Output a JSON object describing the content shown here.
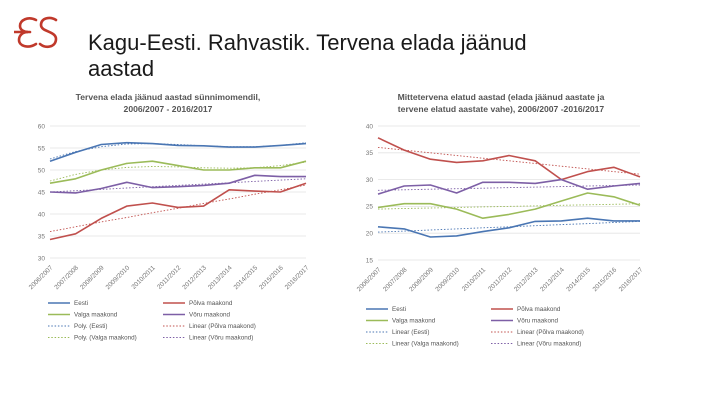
{
  "slide": {
    "title_line1": "Kagu-Eesti. Rahvastik. Tervena elada jäänud",
    "title_line2": "aastad"
  },
  "logo": {
    "icon": "es-logo-icon",
    "color": "#c0392b"
  },
  "chart_data": [
    {
      "type": "line",
      "title_lines": [
        "Tervena elada jäänud aastad sünnimomendil,",
        "2006/2007 - 2016/2017"
      ],
      "categories": [
        "2006/2007",
        "2007/2008",
        "2008/2009",
        "2009/2010",
        "2010/2011",
        "2011/2012",
        "2012/2013",
        "2013/2014",
        "2014/2015",
        "2015/2016",
        "2016/2017"
      ],
      "ylim": [
        30,
        60
      ],
      "yticks": [
        30,
        35,
        40,
        45,
        50,
        55,
        60
      ],
      "grid": true,
      "series": [
        {
          "name": "Eesti",
          "color": "#4a76b3",
          "style": "solid",
          "values": [
            52.0,
            54.0,
            55.8,
            56.2,
            56.0,
            55.6,
            55.5,
            55.2,
            55.2,
            55.6,
            56.0
          ]
        },
        {
          "name": "Põlva maakond",
          "color": "#c0504d",
          "style": "solid",
          "values": [
            34.2,
            35.5,
            39.0,
            41.8,
            42.5,
            41.5,
            41.8,
            45.5,
            45.2,
            45.0,
            47.0
          ]
        },
        {
          "name": "Valga maakond",
          "color": "#9bbb59",
          "style": "solid",
          "values": [
            47.0,
            48.0,
            50.0,
            51.5,
            52.0,
            51.0,
            50.0,
            50.0,
            50.5,
            50.5,
            52.0
          ]
        },
        {
          "name": "Võru maakond",
          "color": "#7d5fa6",
          "style": "solid",
          "values": [
            45.0,
            44.8,
            45.8,
            47.2,
            46.0,
            46.2,
            46.5,
            47.0,
            48.8,
            48.5,
            48.5
          ]
        },
        {
          "name": "Poly. (Eesti)",
          "color": "#4a76b3",
          "style": "dotted",
          "values": [
            52.5,
            54.2,
            55.3,
            55.9,
            56.0,
            55.8,
            55.5,
            55.3,
            55.3,
            55.6,
            56.2
          ]
        },
        {
          "name": "Linear (Põlva maakond)",
          "color": "#c0504d",
          "style": "dotted",
          "values": [
            36.0,
            37.1,
            38.2,
            39.2,
            40.3,
            41.3,
            42.4,
            43.4,
            44.5,
            45.5,
            46.6
          ]
        },
        {
          "name": "Poly. (Valga maakond)",
          "color": "#9bbb59",
          "style": "dotted",
          "values": [
            47.5,
            49.0,
            50.0,
            50.6,
            50.8,
            50.7,
            50.5,
            50.4,
            50.5,
            51.0,
            51.8
          ]
        },
        {
          "name": "Linear (Võru maakond)",
          "color": "#7d5fa6",
          "style": "dotted",
          "values": [
            45.0,
            45.3,
            45.6,
            45.9,
            46.2,
            46.5,
            46.8,
            47.1,
            47.4,
            47.7,
            48.0
          ]
        }
      ]
    },
    {
      "type": "line",
      "title_lines": [
        "Mittetervena elatud aastad (elada jäänud aastate ja",
        "tervene elatud aastate vahe), 2006/2007 -2016/2017"
      ],
      "categories": [
        "2006/2007",
        "2007/2008",
        "2008/2009",
        "2009/2010",
        "2010/2011",
        "2011/2012",
        "2012/2013",
        "2013/2014",
        "2014/2015",
        "2015/2016",
        "2016/2017"
      ],
      "ylim": [
        15,
        40
      ],
      "yticks": [
        15,
        20,
        25,
        30,
        35,
        40
      ],
      "grid": true,
      "series": [
        {
          "name": "Eesti",
          "color": "#4a76b3",
          "style": "solid",
          "values": [
            21.2,
            20.8,
            19.3,
            19.5,
            20.3,
            21.0,
            22.2,
            22.3,
            22.8,
            22.3,
            22.3
          ]
        },
        {
          "name": "Põlva maakond",
          "color": "#c0504d",
          "style": "solid",
          "values": [
            37.8,
            35.5,
            33.8,
            33.2,
            33.5,
            34.5,
            33.5,
            30.0,
            31.5,
            32.3,
            30.5
          ]
        },
        {
          "name": "Valga maakond",
          "color": "#9bbb59",
          "style": "solid",
          "values": [
            24.8,
            25.5,
            25.5,
            24.5,
            22.8,
            23.5,
            24.5,
            26.0,
            27.5,
            26.8,
            25.2
          ]
        },
        {
          "name": "Võru maakond",
          "color": "#7d5fa6",
          "style": "solid",
          "values": [
            27.3,
            28.8,
            29.0,
            27.5,
            29.5,
            29.5,
            29.3,
            30.0,
            28.2,
            28.8,
            29.3
          ]
        },
        {
          "name": "Linear (Eesti)",
          "color": "#4a76b3",
          "style": "dotted",
          "values": [
            20.2,
            20.4,
            20.6,
            20.8,
            21.0,
            21.2,
            21.4,
            21.6,
            21.8,
            22.0,
            22.2
          ]
        },
        {
          "name": "Linear (Põlva maakond)",
          "color": "#c0504d",
          "style": "dotted",
          "values": [
            36.0,
            35.5,
            35.0,
            34.5,
            34.0,
            33.5,
            33.0,
            32.5,
            32.0,
            31.5,
            31.0
          ]
        },
        {
          "name": "Linear (Valga maakond)",
          "color": "#9bbb59",
          "style": "dotted",
          "values": [
            24.5,
            24.6,
            24.7,
            24.8,
            24.9,
            25.0,
            25.1,
            25.2,
            25.3,
            25.4,
            25.5
          ]
        },
        {
          "name": "Linear (Võru maakond)",
          "color": "#7d5fa6",
          "style": "dotted",
          "values": [
            28.0,
            28.1,
            28.2,
            28.3,
            28.4,
            28.5,
            28.6,
            28.7,
            28.8,
            28.9,
            29.0
          ]
        }
      ]
    }
  ]
}
